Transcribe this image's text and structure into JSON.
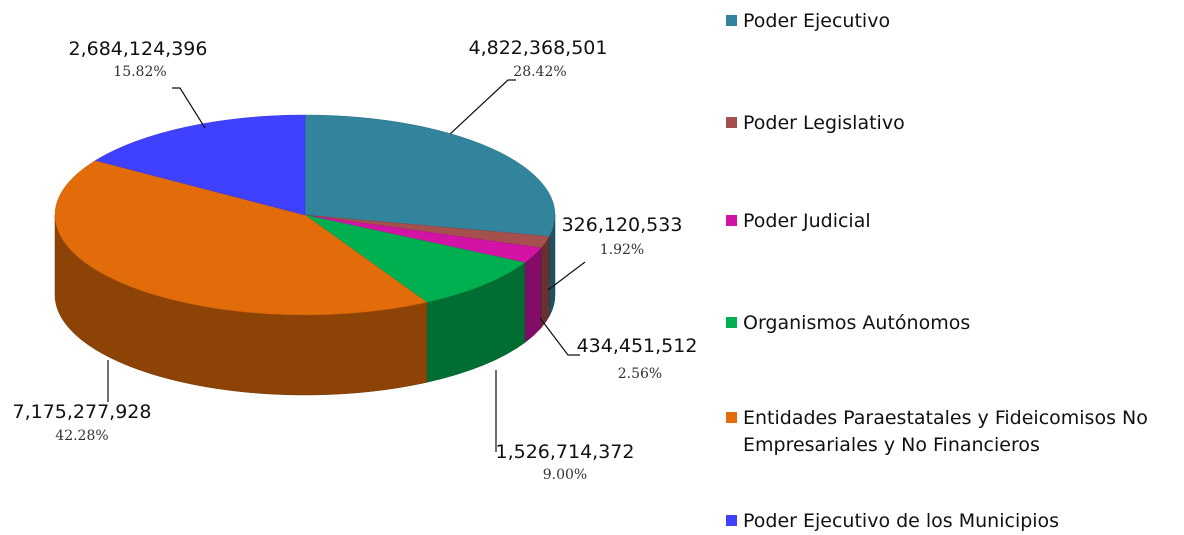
{
  "chart_data": {
    "type": "pie",
    "title": "",
    "legend_placement": "right",
    "series": [
      {
        "name": "Poder Ejecutivo",
        "value": 4822368501,
        "value_label": "4,822,368,501",
        "percent_label": "28.42%",
        "color": "#31849b"
      },
      {
        "name": "Poder Legislativo",
        "value": 326120533,
        "value_label": "326,120,533",
        "percent_label": "1.92%",
        "color": "#a5504f"
      },
      {
        "name": "Poder Judicial",
        "value": 434451512,
        "value_label": "434,451,512",
        "percent_label": "2.56%",
        "color": "#d313a6"
      },
      {
        "name": "Organismos Autónomos",
        "value": 1526714372,
        "value_label": "1,526,714,372",
        "percent_label": "9.00%",
        "color": "#00b050"
      },
      {
        "name": "Entidades Paraestatales y Fideicomisos No Empresariales y No Financieros",
        "value": 7175277928,
        "value_label": "7,175,277,928",
        "percent_label": "42.28%",
        "color": "#e36c0a"
      },
      {
        "name": "Poder Ejecutivo de los Municipios",
        "value": 2684124396,
        "value_label": "2,684,124,396",
        "percent_label": "15.82%",
        "color": "#4040ff"
      }
    ]
  }
}
